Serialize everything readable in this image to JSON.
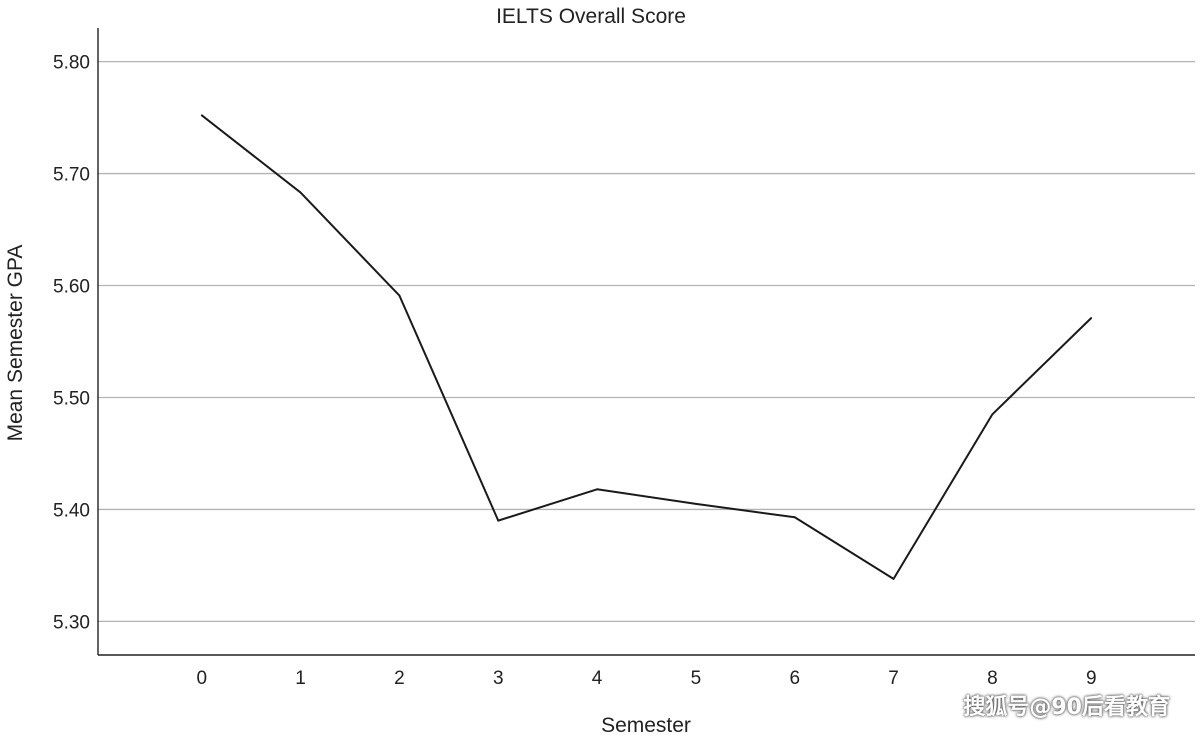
{
  "chart_data": {
    "type": "line",
    "title": "IELTS Overall Score",
    "xlabel": "Semester",
    "ylabel": "Mean Semester GPA",
    "x": [
      0,
      1,
      2,
      3,
      4,
      5,
      6,
      7,
      8,
      9
    ],
    "series": [
      {
        "values": [
          5.752,
          5.683,
          5.591,
          5.39,
          5.418,
          5.405,
          5.393,
          5.338,
          5.485,
          5.571
        ],
        "color": "#1a1a1a"
      }
    ],
    "y_ticks": [
      "5.30",
      "5.40",
      "5.50",
      "5.60",
      "5.70",
      "5.80"
    ],
    "x_ticks": [
      "0",
      "1",
      "2",
      "3",
      "4",
      "5",
      "6",
      "7",
      "8",
      "9"
    ],
    "ylim": [
      5.27,
      5.83
    ],
    "xlim": [
      -1.05,
      10.05
    ],
    "grid": "horizontal"
  },
  "watermark": "搜狐号@90后看教育"
}
